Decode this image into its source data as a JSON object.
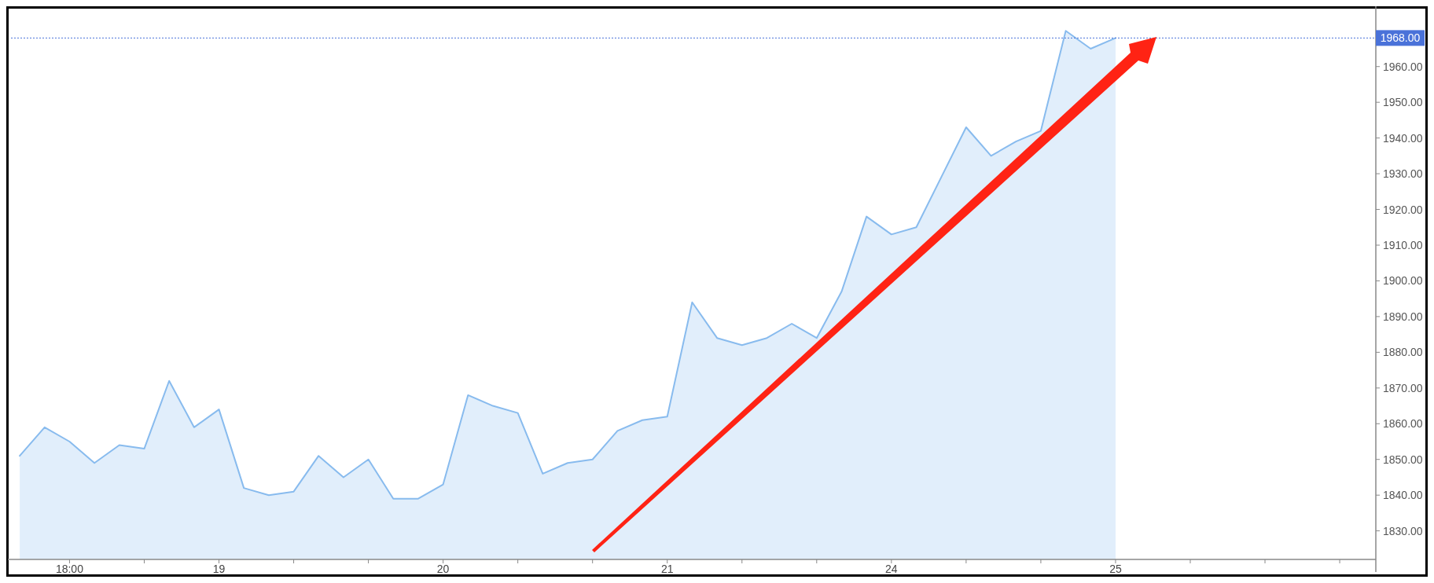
{
  "chart_data": {
    "type": "area",
    "categories": [
      null,
      null,
      "18:00",
      null,
      null,
      null,
      null,
      null,
      "19",
      null,
      null,
      null,
      null,
      null,
      null,
      null,
      null,
      "20",
      null,
      null,
      null,
      null,
      null,
      null,
      null,
      null,
      "21",
      null,
      null,
      null,
      null,
      null,
      null,
      null,
      null,
      "24",
      null,
      null,
      null,
      null,
      null,
      null,
      null,
      null,
      "25",
      null,
      null,
      null,
      null,
      null,
      null,
      null,
      null,
      null,
      null
    ],
    "series": [
      {
        "color": "#88bbee",
        "values": [
          1851,
          1859,
          1855,
          1849,
          1854,
          1853,
          1872,
          1859,
          1864,
          1842,
          1840,
          1841,
          1851,
          1845,
          1850,
          1839,
          1839,
          1843,
          1868,
          1865,
          1863,
          1846,
          1849,
          1850,
          1858,
          1861,
          1862,
          1894,
          1884,
          1882,
          1884,
          1888,
          1884,
          1897,
          1918,
          1913,
          1915,
          1929,
          1943,
          1935,
          1939,
          1942,
          1970,
          1965,
          1968,
          null,
          null,
          null,
          null,
          null,
          null,
          null,
          null,
          null,
          null
        ]
      }
    ],
    "ylim": [
      1822,
      1976
    ],
    "yticks": [
      {
        "value": 1830,
        "label": "1830.00"
      },
      {
        "value": 1840,
        "label": "1840.00"
      },
      {
        "value": 1850,
        "label": "1850.00"
      },
      {
        "value": 1860,
        "label": "1860.00"
      },
      {
        "value": 1870,
        "label": "1870.00"
      },
      {
        "value": 1880,
        "label": "1880.00"
      },
      {
        "value": 1890,
        "label": "1890.00"
      },
      {
        "value": 1900,
        "label": "1900.00"
      },
      {
        "value": 1910,
        "label": "1910.00"
      },
      {
        "value": 1920,
        "label": "1920.00"
      },
      {
        "value": 1930,
        "label": "1930.00"
      },
      {
        "value": 1940,
        "label": "1940.00"
      },
      {
        "value": 1950,
        "label": "1950.00"
      },
      {
        "value": 1960,
        "label": "1960.00"
      }
    ],
    "ref_lines": [
      {
        "axis": "y",
        "value": 1968,
        "label": "1968.00",
        "color": "#4a72d9",
        "line_style": "dotted"
      }
    ],
    "grid": false
  }
}
